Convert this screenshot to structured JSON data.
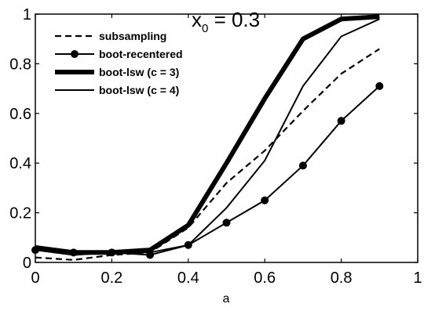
{
  "chart_data": {
    "type": "line",
    "title": "x",
    "title_subscript": "0",
    "title_suffix": " = 0.3",
    "xlabel": "a",
    "ylabel": "",
    "xlim": [
      0,
      1
    ],
    "ylim": [
      0,
      1
    ],
    "xticks": [
      "0",
      "0.2",
      "0.4",
      "0.6",
      "0.8",
      "1"
    ],
    "yticks": [
      "0",
      "0.2",
      "0.4",
      "0.6",
      "0.8",
      "1"
    ],
    "x": [
      0,
      0.1,
      0.2,
      0.3,
      0.4,
      0.5,
      0.6,
      0.7,
      0.8,
      0.9
    ],
    "legend_position": "top-left",
    "grid": false,
    "series": [
      {
        "name": "subsampling",
        "style": "dashed",
        "values": [
          0.02,
          0.01,
          0.03,
          0.04,
          0.14,
          0.32,
          0.45,
          0.61,
          0.76,
          0.86
        ]
      },
      {
        "name": "boot-recentered",
        "style": "dots",
        "values": [
          0.05,
          0.04,
          0.04,
          0.03,
          0.07,
          0.16,
          0.25,
          0.39,
          0.57,
          0.71
        ]
      },
      {
        "name": "boot-lsw (c = 3)",
        "style": "thick",
        "values": [
          0.06,
          0.04,
          0.04,
          0.05,
          0.15,
          0.4,
          0.66,
          0.9,
          0.98,
          0.99
        ]
      },
      {
        "name": "boot-lsw (c = 4)",
        "style": "thin",
        "values": [
          0.05,
          0.03,
          0.04,
          0.04,
          0.07,
          0.22,
          0.41,
          0.71,
          0.91,
          0.98
        ]
      }
    ]
  }
}
